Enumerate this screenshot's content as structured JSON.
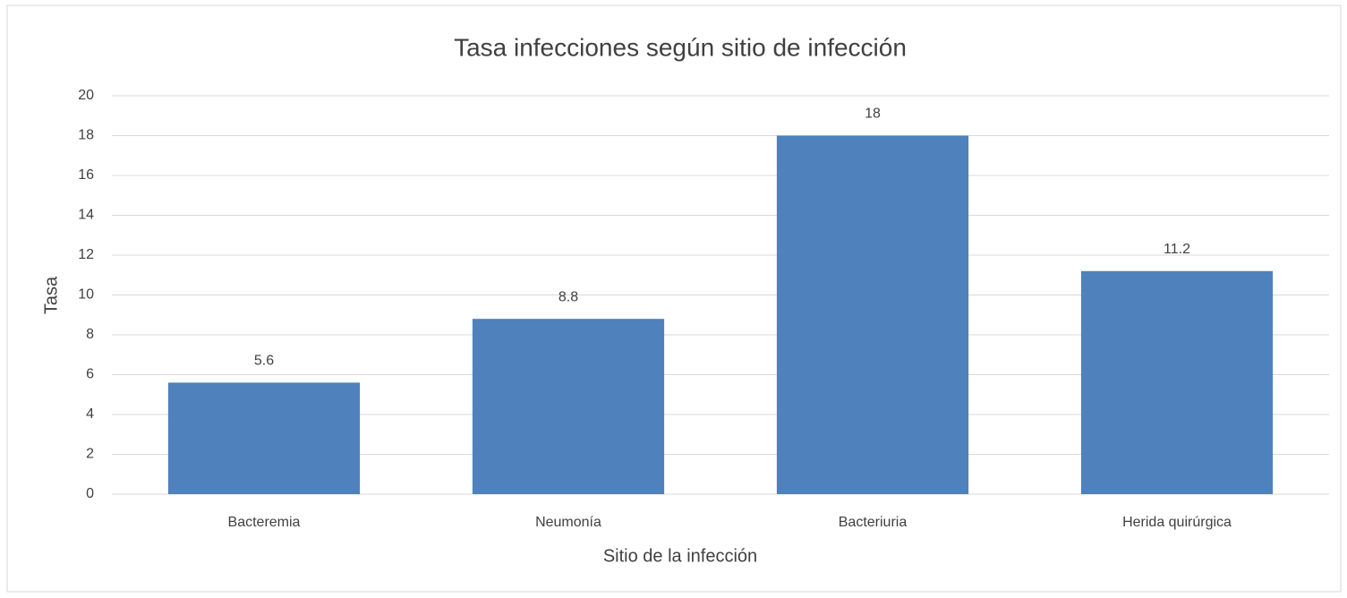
{
  "chart_data": {
    "type": "bar",
    "title": "Tasa infecciones según sitio de infección",
    "x_label": "Sitio de la infección",
    "y_label": "Tasa",
    "categories": [
      "Bacteremia",
      "Neumonía",
      "Bacteriuria",
      "Herida quirúrgica"
    ],
    "values": [
      5.6,
      8.8,
      18,
      11.2
    ],
    "color": "#4f81bd",
    "ylim": [
      0,
      20
    ],
    "yticks": [
      0,
      2,
      4,
      6,
      8,
      10,
      12,
      14,
      16,
      18,
      20
    ],
    "grid": true
  }
}
